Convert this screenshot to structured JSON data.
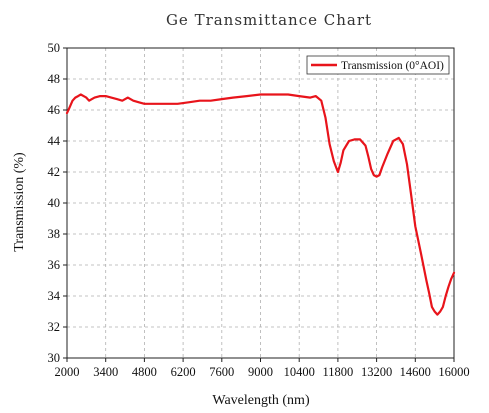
{
  "chart_data": {
    "type": "line",
    "title": "Ge  Transmittance  Chart",
    "xlabel": "Wavelength (nm)",
    "ylabel": "Transmission (%)",
    "xlim": [
      2000,
      16000
    ],
    "ylim": [
      30,
      50
    ],
    "xticks": [
      2000,
      3400,
      4800,
      6200,
      7600,
      9000,
      10400,
      11800,
      13200,
      14600,
      16000
    ],
    "yticks": [
      30,
      32,
      34,
      36,
      38,
      40,
      42,
      44,
      46,
      48,
      50
    ],
    "grid": true,
    "legend_position": "top-right",
    "series": [
      {
        "name": "Transmission (0°AOI)",
        "color": "#e8141b",
        "x": [
          2000,
          2100,
          2200,
          2300,
          2400,
          2500,
          2600,
          2700,
          2800,
          2900,
          3000,
          3200,
          3400,
          3600,
          3800,
          4000,
          4200,
          4400,
          4600,
          4800,
          5200,
          5600,
          6000,
          6400,
          6800,
          7200,
          7600,
          8000,
          8500,
          9000,
          9500,
          10000,
          10400,
          10800,
          11000,
          11200,
          11350,
          11500,
          11650,
          11800,
          11900,
          12000,
          12200,
          12400,
          12600,
          12800,
          12900,
          13000,
          13100,
          13200,
          13300,
          13400,
          13600,
          13800,
          14000,
          14150,
          14300,
          14450,
          14600,
          14800,
          15000,
          15100,
          15200,
          15300,
          15400,
          15500,
          15600,
          15700,
          15800,
          15900,
          16000
        ],
        "y": [
          45.8,
          46.2,
          46.6,
          46.8,
          46.9,
          47.0,
          46.9,
          46.8,
          46.6,
          46.7,
          46.8,
          46.9,
          46.9,
          46.8,
          46.7,
          46.6,
          46.8,
          46.6,
          46.5,
          46.4,
          46.4,
          46.4,
          46.4,
          46.5,
          46.6,
          46.6,
          46.7,
          46.8,
          46.9,
          47.0,
          47.0,
          47.0,
          46.9,
          46.8,
          46.9,
          46.6,
          45.5,
          43.8,
          42.7,
          42.0,
          42.6,
          43.4,
          44.0,
          44.1,
          44.1,
          43.7,
          43.0,
          42.2,
          41.8,
          41.7,
          41.8,
          42.3,
          43.2,
          44.0,
          44.2,
          43.8,
          42.5,
          40.5,
          38.5,
          36.8,
          35.0,
          34.2,
          33.3,
          33.0,
          32.8,
          33.0,
          33.3,
          34.0,
          34.6,
          35.1,
          35.5
        ]
      }
    ]
  }
}
